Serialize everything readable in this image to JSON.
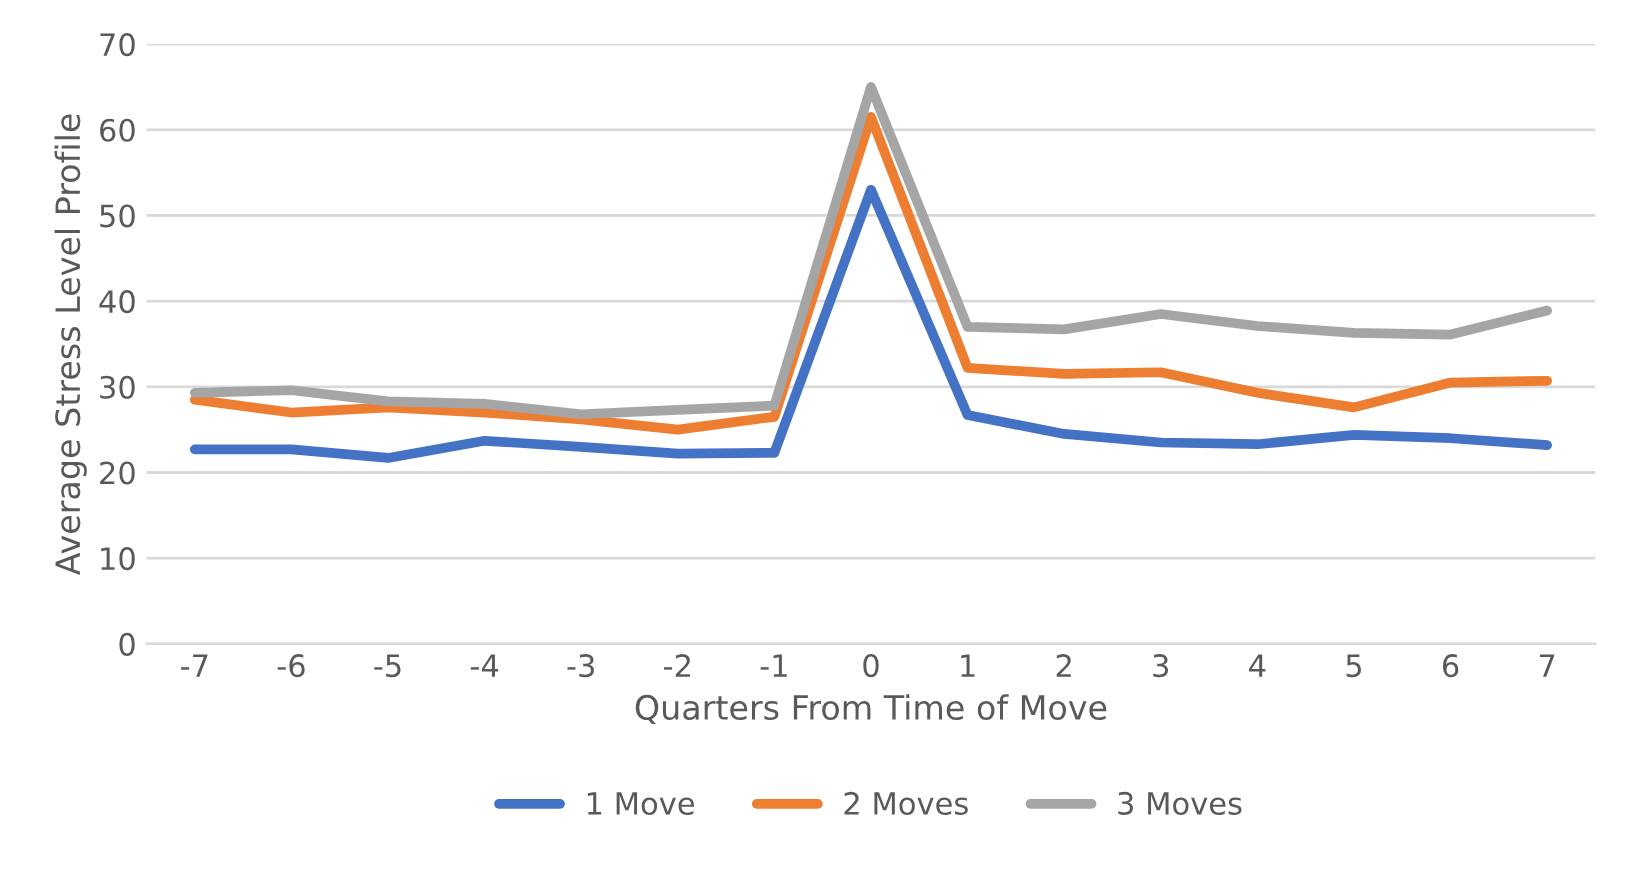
{
  "chart_data": {
    "type": "line",
    "xlabel": "Quarters From Time of Move",
    "ylabel": "Average Stress Level Profile",
    "categories": [
      "-7",
      "-6",
      "-5",
      "-4",
      "-3",
      "-2",
      "-1",
      "0",
      "1",
      "2",
      "3",
      "4",
      "5",
      "6",
      "7"
    ],
    "series": [
      {
        "name": "1 Move",
        "color": "#4472c4",
        "values": [
          22.7,
          22.7,
          21.7,
          23.7,
          23,
          22.2,
          22.3,
          53,
          26.7,
          24.5,
          23.5,
          23.3,
          24.4,
          24,
          23.2
        ]
      },
      {
        "name": "2 Moves",
        "color": "#ed7d31",
        "values": [
          28.5,
          27,
          27.6,
          27,
          26.2,
          25,
          26.5,
          61.5,
          32.2,
          31.5,
          31.7,
          29.3,
          27.6,
          30.5,
          30.7
        ]
      },
      {
        "name": "3 Moves",
        "color": "#a5a5a5",
        "values": [
          29.3,
          29.6,
          28.3,
          28,
          26.8,
          27.3,
          27.8,
          65,
          37,
          36.7,
          38.5,
          37.1,
          36.3,
          36.1,
          38.9
        ]
      }
    ],
    "ylim": [
      0,
      70
    ],
    "yticks": [
      0,
      10,
      20,
      30,
      40,
      50,
      60,
      70
    ],
    "grid": "y",
    "legend": "bottom",
    "marker": "none",
    "line_style": "solid"
  }
}
